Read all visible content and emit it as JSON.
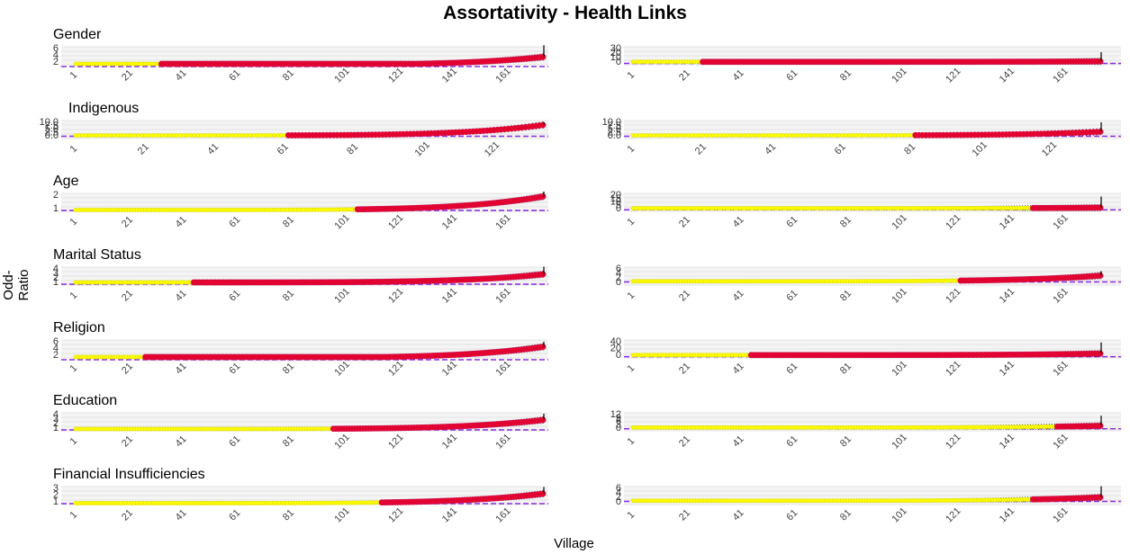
{
  "title": "Assortativity - Health Links",
  "xlabel": "Village",
  "ylabel": "Odd-Ratio",
  "colors": {
    "point": "#e8002a",
    "point_outline": "#c2185b",
    "band": "#ffff00",
    "errorbar": "#000000",
    "reference_line": "#8a2be2",
    "grid": "#e0e0e0",
    "panel_bg": "#ebebeb"
  },
  "rows": [
    {
      "label": "Gender"
    },
    {
      "label": "Indigenous"
    },
    {
      "label": "Age"
    },
    {
      "label": "Marital Status"
    },
    {
      "label": "Religion"
    },
    {
      "label": "Education"
    },
    {
      "label": "Financial Insufficiencies"
    }
  ],
  "chart_data": [
    {
      "type": "scatter",
      "row": "Gender",
      "column": "left",
      "n_villages": 175,
      "reference_line_y": 1,
      "x_ticks": [
        "1",
        "21",
        "41",
        "61",
        "81",
        "101",
        "121",
        "141",
        "161"
      ],
      "y_ticks": [
        "2",
        "4",
        "6"
      ],
      "y_min_est": 1.1,
      "y_max_est": 3.5,
      "red_fraction": 0.82,
      "spike_est": 7
    },
    {
      "type": "scatter",
      "row": "Gender",
      "column": "right",
      "n_villages": 175,
      "reference_line_y": 1,
      "x_ticks": [
        "1",
        "21",
        "41",
        "61",
        "81",
        "101",
        "121",
        "141",
        "161"
      ],
      "y_ticks": [
        "0",
        "10",
        "20",
        "30"
      ],
      "y_min_est": 0.5,
      "y_max_est": 1.5,
      "red_fraction": 0.85,
      "spike_est": 22
    },
    {
      "type": "scatter",
      "row": "Indigenous",
      "column": "left",
      "n_villages": 135,
      "reference_line_y": 1,
      "x_ticks": [
        "1",
        "21",
        "41",
        "61",
        "81",
        "101",
        "121"
      ],
      "y_ticks": [
        "0.0",
        "2.5",
        "5.0",
        "7.5",
        "10.0"
      ],
      "y_min_est": 0.3,
      "y_max_est": 8.0,
      "red_fraction": 0.55,
      "spike_est": 10
    },
    {
      "type": "scatter",
      "row": "Indigenous",
      "column": "right",
      "n_villages": 135,
      "reference_line_y": 1,
      "x_ticks": [
        "1",
        "21",
        "41",
        "61",
        "81",
        "101",
        "121"
      ],
      "y_ticks": [
        "0.0",
        "2.5",
        "5.0",
        "7.5",
        "10.0"
      ],
      "y_min_est": 0.3,
      "y_max_est": 3.0,
      "red_fraction": 0.4,
      "spike_est": 10
    },
    {
      "type": "scatter",
      "row": "Age",
      "column": "left",
      "n_villages": 175,
      "reference_line_y": 1,
      "x_ticks": [
        "1",
        "21",
        "41",
        "61",
        "81",
        "101",
        "121",
        "141",
        "161"
      ],
      "y_ticks": [
        "1",
        "2"
      ],
      "y_min_est": 0.9,
      "y_max_est": 1.9,
      "red_fraction": 0.4,
      "spike_est": 2.3
    },
    {
      "type": "scatter",
      "row": "Age",
      "column": "right",
      "n_villages": 175,
      "reference_line_y": 1,
      "x_ticks": [
        "1",
        "21",
        "41",
        "61",
        "81",
        "101",
        "121",
        "141",
        "161"
      ],
      "y_ticks": [
        "0",
        "5",
        "10",
        "15",
        "20"
      ],
      "y_min_est": 0.5,
      "y_max_est": 1.5,
      "red_fraction": 0.15,
      "spike_est": 18
    },
    {
      "type": "scatter",
      "row": "Marital Status",
      "column": "left",
      "n_villages": 175,
      "reference_line_y": 1,
      "x_ticks": [
        "1",
        "21",
        "41",
        "61",
        "81",
        "101",
        "121",
        "141",
        "161"
      ],
      "y_ticks": [
        "1",
        "2",
        "3",
        "4"
      ],
      "y_min_est": 1.0,
      "y_max_est": 2.8,
      "red_fraction": 0.75,
      "spike_est": 4.5
    },
    {
      "type": "scatter",
      "row": "Marital Status",
      "column": "right",
      "n_villages": 175,
      "reference_line_y": 1,
      "x_ticks": [
        "1",
        "21",
        "41",
        "61",
        "81",
        "101",
        "121",
        "141",
        "161"
      ],
      "y_ticks": [
        "0",
        "2",
        "4",
        "6"
      ],
      "y_min_est": 0.5,
      "y_max_est": 3.0,
      "red_fraction": 0.3,
      "spike_est": 5
    },
    {
      "type": "scatter",
      "row": "Religion",
      "column": "left",
      "n_villages": 175,
      "reference_line_y": 1,
      "x_ticks": [
        "1",
        "21",
        "41",
        "61",
        "81",
        "101",
        "121",
        "141",
        "161"
      ],
      "y_ticks": [
        "2",
        "4",
        "6"
      ],
      "y_min_est": 1.2,
      "y_max_est": 4.5,
      "red_fraction": 0.85,
      "spike_est": 6
    },
    {
      "type": "scatter",
      "row": "Religion",
      "column": "right",
      "n_villages": 175,
      "reference_line_y": 1,
      "x_ticks": [
        "1",
        "21",
        "41",
        "61",
        "81",
        "101",
        "121",
        "141",
        "161"
      ],
      "y_ticks": [
        "0",
        "20",
        "40"
      ],
      "y_min_est": 0.5,
      "y_max_est": 5.0,
      "red_fraction": 0.75,
      "spike_est": 38
    },
    {
      "type": "scatter",
      "row": "Education",
      "column": "left",
      "n_villages": 175,
      "reference_line_y": 1,
      "x_ticks": [
        "1",
        "21",
        "41",
        "61",
        "81",
        "101",
        "121",
        "141",
        "161"
      ],
      "y_ticks": [
        "1",
        "2",
        "3",
        "4"
      ],
      "y_min_est": 0.8,
      "y_max_est": 2.8,
      "red_fraction": 0.45,
      "spike_est": 4.2
    },
    {
      "type": "scatter",
      "row": "Education",
      "column": "right",
      "n_villages": 175,
      "reference_line_y": 1,
      "x_ticks": [
        "1",
        "21",
        "41",
        "61",
        "81",
        "101",
        "121",
        "141",
        "161"
      ],
      "y_ticks": [
        "0",
        "3",
        "6",
        "9",
        "12"
      ],
      "y_min_est": 0.5,
      "y_max_est": 2.0,
      "red_fraction": 0.1,
      "spike_est": 11
    },
    {
      "type": "scatter",
      "row": "Financial Insufficiencies",
      "column": "left",
      "n_villages": 175,
      "reference_line_y": 1,
      "x_ticks": [
        "1",
        "21",
        "41",
        "61",
        "81",
        "101",
        "121",
        "141",
        "161"
      ],
      "y_ticks": [
        "1",
        "2",
        "3"
      ],
      "y_min_est": 0.8,
      "y_max_est": 2.2,
      "red_fraction": 0.35,
      "spike_est": 3.2
    },
    {
      "type": "scatter",
      "row": "Financial Insufficiencies",
      "column": "right",
      "n_villages": 175,
      "reference_line_y": 1,
      "x_ticks": [
        "1",
        "21",
        "41",
        "61",
        "81",
        "101",
        "121",
        "141",
        "161"
      ],
      "y_ticks": [
        "0",
        "2",
        "4",
        "6"
      ],
      "y_min_est": 0.5,
      "y_max_est": 2.0,
      "red_fraction": 0.15,
      "spike_est": 7
    }
  ]
}
